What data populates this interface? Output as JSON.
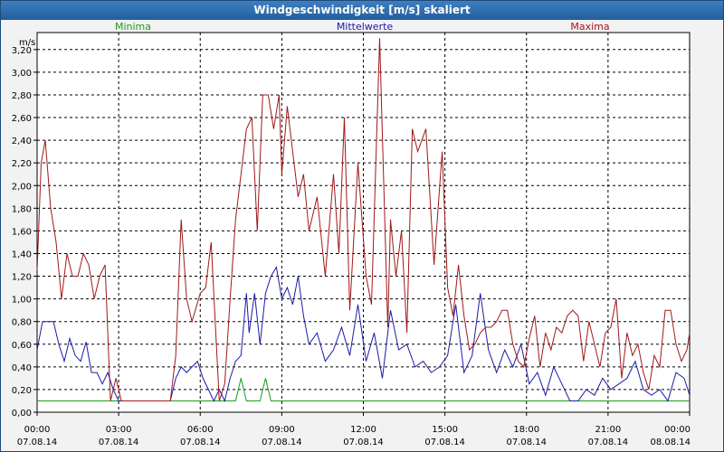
{
  "window": {
    "title": "Windgeschwindigkeit [m/s] skaliert"
  },
  "legend": [
    {
      "name": "Minima",
      "color": "#1a9c1a"
    },
    {
      "name": "Mittelwerte",
      "color": "#1a1aa8"
    },
    {
      "name": "Maxima",
      "color": "#a01818"
    }
  ],
  "chart_data": {
    "type": "line",
    "title": "Windgeschwindigkeit [m/s] skaliert",
    "ylabel": "m/s",
    "xlabel": "",
    "ylim": [
      0,
      3.35
    ],
    "xlim": [
      0,
      24
    ],
    "grid": true,
    "legend_position": "top",
    "y_ticks": [
      "0,00",
      "0,20",
      "0,40",
      "0,60",
      "0,80",
      "1,00",
      "1,20",
      "1,40",
      "1,60",
      "1,80",
      "2,00",
      "2,20",
      "2,40",
      "2,60",
      "2,80",
      "3,00",
      "3,20"
    ],
    "x_ticks": [
      {
        "time": "00:00",
        "date": "07.08.14"
      },
      {
        "time": "03:00",
        "date": "07.08.14"
      },
      {
        "time": "06:00",
        "date": "07.08.14"
      },
      {
        "time": "09:00",
        "date": "07.08.14"
      },
      {
        "time": "12:00",
        "date": "07.08.14"
      },
      {
        "time": "15:00",
        "date": "07.08.14"
      },
      {
        "time": "18:00",
        "date": "07.08.14"
      },
      {
        "time": "21:00",
        "date": "07.08.14"
      },
      {
        "time": "00:00",
        "date": "08.08.14"
      }
    ],
    "series": [
      {
        "name": "Minima",
        "color": "#1a9c1a",
        "x": [
          0,
          7.3,
          7.5,
          7.7,
          8.2,
          8.4,
          8.6,
          24
        ],
        "y": [
          0.1,
          0.1,
          0.3,
          0.1,
          0.1,
          0.3,
          0.1,
          0.1
        ]
      },
      {
        "name": "Mittelwerte",
        "color": "#1a1aa8",
        "x": [
          0,
          0.2,
          0.4,
          0.6,
          0.8,
          1.0,
          1.2,
          1.4,
          1.6,
          1.8,
          2.0,
          2.2,
          2.4,
          2.6,
          2.8,
          3.0,
          4.9,
          5.1,
          5.3,
          5.5,
          5.7,
          5.9,
          6.1,
          6.3,
          6.5,
          6.7,
          6.9,
          7.1,
          7.3,
          7.5,
          7.7,
          7.8,
          8.0,
          8.2,
          8.4,
          8.6,
          8.8,
          9.0,
          9.2,
          9.4,
          9.6,
          9.8,
          10.0,
          10.3,
          10.6,
          10.9,
          11.2,
          11.5,
          11.8,
          12.1,
          12.4,
          12.7,
          13.0,
          13.3,
          13.6,
          13.9,
          14.2,
          14.5,
          14.8,
          15.1,
          15.4,
          15.7,
          16.0,
          16.3,
          16.6,
          16.9,
          17.2,
          17.5,
          17.8,
          18.1,
          18.4,
          18.7,
          19.0,
          19.3,
          19.6,
          19.9,
          20.2,
          20.5,
          20.8,
          21.1,
          21.4,
          21.7,
          22.0,
          22.3,
          22.6,
          22.9,
          23.2,
          23.5,
          23.8,
          24.0
        ],
        "y": [
          0.55,
          0.8,
          0.8,
          0.8,
          0.6,
          0.45,
          0.65,
          0.5,
          0.45,
          0.62,
          0.35,
          0.35,
          0.25,
          0.35,
          0.2,
          0.1,
          0.1,
          0.3,
          0.4,
          0.35,
          0.4,
          0.45,
          0.3,
          0.2,
          0.1,
          0.2,
          0.1,
          0.3,
          0.45,
          0.5,
          1.05,
          0.7,
          1.05,
          0.6,
          1.05,
          1.2,
          1.28,
          1.0,
          1.1,
          0.95,
          1.2,
          0.85,
          0.6,
          0.7,
          0.45,
          0.55,
          0.75,
          0.5,
          0.95,
          0.45,
          0.7,
          0.3,
          0.9,
          0.55,
          0.6,
          0.4,
          0.45,
          0.35,
          0.4,
          0.5,
          0.95,
          0.35,
          0.5,
          1.05,
          0.55,
          0.35,
          0.55,
          0.4,
          0.6,
          0.25,
          0.35,
          0.15,
          0.4,
          0.25,
          0.1,
          0.1,
          0.2,
          0.15,
          0.3,
          0.2,
          0.25,
          0.3,
          0.45,
          0.2,
          0.15,
          0.2,
          0.1,
          0.35,
          0.3,
          0.15
        ]
      },
      {
        "name": "Maxima",
        "color": "#a01818",
        "x": [
          0,
          0.15,
          0.3,
          0.5,
          0.7,
          0.9,
          1.1,
          1.3,
          1.5,
          1.7,
          1.9,
          2.1,
          2.3,
          2.5,
          2.7,
          2.9,
          3.1,
          4.9,
          5.1,
          5.3,
          5.5,
          5.7,
          6.0,
          6.2,
          6.4,
          6.7,
          6.9,
          7.1,
          7.3,
          7.5,
          7.7,
          7.9,
          8.1,
          8.3,
          8.5,
          8.7,
          8.9,
          9.0,
          9.2,
          9.4,
          9.6,
          9.8,
          10.0,
          10.3,
          10.6,
          10.9,
          11.1,
          11.3,
          11.5,
          11.8,
          12.1,
          12.3,
          12.6,
          12.9,
          13.0,
          13.2,
          13.4,
          13.6,
          13.8,
          14.0,
          14.3,
          14.6,
          14.9,
          15.1,
          15.3,
          15.5,
          15.7,
          15.9,
          16.1,
          16.3,
          16.5,
          16.7,
          16.9,
          17.1,
          17.3,
          17.5,
          17.7,
          17.9,
          18.1,
          18.3,
          18.5,
          18.7,
          18.9,
          19.1,
          19.3,
          19.5,
          19.7,
          19.9,
          20.1,
          20.3,
          20.5,
          20.7,
          20.9,
          21.1,
          21.3,
          21.5,
          21.7,
          21.9,
          22.1,
          22.3,
          22.5,
          22.7,
          22.9,
          23.1,
          23.3,
          23.5,
          23.7,
          23.9,
          24.0
        ],
        "y": [
          1.25,
          2.2,
          2.4,
          1.8,
          1.5,
          1.0,
          1.4,
          1.2,
          1.2,
          1.4,
          1.3,
          1.0,
          1.2,
          1.3,
          0.1,
          0.3,
          0.1,
          0.1,
          0.5,
          1.7,
          1.0,
          0.8,
          1.05,
          1.1,
          1.5,
          0.1,
          0.25,
          1.0,
          1.7,
          2.1,
          2.5,
          2.6,
          1.6,
          2.8,
          2.8,
          2.5,
          2.8,
          2.1,
          2.7,
          2.3,
          1.9,
          2.1,
          1.6,
          1.9,
          1.2,
          2.1,
          1.4,
          2.6,
          0.9,
          2.2,
          1.2,
          0.95,
          3.3,
          0.75,
          1.7,
          1.2,
          1.6,
          0.7,
          2.5,
          2.3,
          2.5,
          1.3,
          2.3,
          1.1,
          0.85,
          1.3,
          0.85,
          0.55,
          0.6,
          0.7,
          0.75,
          0.75,
          0.8,
          0.9,
          0.9,
          0.6,
          0.45,
          0.4,
          0.65,
          0.85,
          0.4,
          0.7,
          0.55,
          0.75,
          0.7,
          0.85,
          0.9,
          0.85,
          0.45,
          0.8,
          0.6,
          0.4,
          0.7,
          0.75,
          1.0,
          0.3,
          0.7,
          0.5,
          0.6,
          0.35,
          0.2,
          0.5,
          0.4,
          0.9,
          0.9,
          0.6,
          0.45,
          0.55,
          0.7
        ]
      }
    ]
  }
}
